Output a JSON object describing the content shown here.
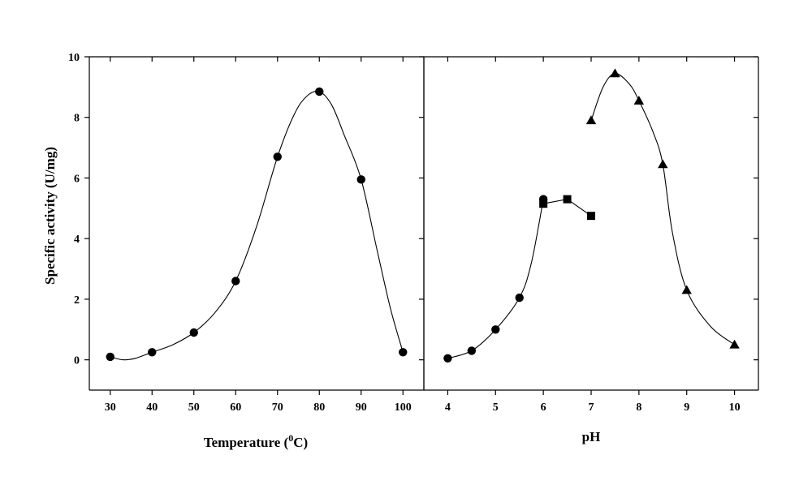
{
  "chart_data": [
    {
      "type": "scatter",
      "xlabel": "Temperature (",
      "xlabel_superscript": "0",
      "xlabel_suffix": "C)",
      "ylabel": "Specific activity (U/mg)",
      "xlim": [
        25,
        105
      ],
      "ylim": [
        -1,
        10
      ],
      "x_ticks": [
        "30",
        "40",
        "50",
        "60",
        "70",
        "80",
        "90",
        "100"
      ],
      "y_ticks": [
        "0",
        "2",
        "4",
        "6",
        "8",
        "10"
      ],
      "grid": false,
      "series": [
        {
          "marker": "circle",
          "x": [
            30,
            40,
            50,
            60,
            70,
            80,
            90,
            100
          ],
          "y": [
            0.1,
            0.25,
            0.9,
            2.6,
            6.7,
            8.85,
            5.95,
            0.25
          ]
        }
      ],
      "fit_curve": {
        "x": [
          30,
          33,
          36,
          40,
          45,
          50,
          55,
          60,
          65,
          70,
          74,
          77,
          80,
          83,
          86,
          90,
          94,
          97,
          100
        ],
        "y": [
          0.1,
          0.0,
          0.05,
          0.25,
          0.5,
          0.9,
          1.55,
          2.6,
          4.4,
          6.7,
          8.1,
          8.7,
          8.85,
          8.4,
          7.4,
          5.95,
          3.5,
          1.7,
          0.25
        ]
      }
    },
    {
      "type": "scatter",
      "xlabel": "pH",
      "xlim": [
        3.5,
        10.5
      ],
      "ylim": [
        -1,
        10
      ],
      "x_ticks": [
        "4",
        "5",
        "6",
        "7",
        "8",
        "9",
        "10"
      ],
      "grid": false,
      "series": [
        {
          "marker": "circle",
          "x": [
            4.0,
            4.5,
            5.0,
            5.5,
            6.0
          ],
          "y": [
            0.05,
            0.3,
            1.0,
            2.05,
            5.3
          ]
        },
        {
          "marker": "square",
          "x": [
            6.0,
            6.5,
            7.0
          ],
          "y": [
            5.15,
            5.3,
            4.75
          ]
        },
        {
          "marker": "triangle",
          "x": [
            7.0,
            7.5,
            8.0,
            8.5,
            9.0,
            10.0
          ],
          "y": [
            7.9,
            9.45,
            8.55,
            6.45,
            2.3,
            0.5
          ]
        }
      ],
      "fit_curves": [
        {
          "x": [
            4.0,
            4.5,
            5.0,
            5.5,
            5.75,
            6.0
          ],
          "y": [
            0.05,
            0.3,
            1.0,
            2.05,
            3.2,
            5.3
          ]
        },
        {
          "x": [
            6.0,
            6.5,
            7.0
          ],
          "y": [
            5.15,
            5.3,
            4.75
          ]
        },
        {
          "x": [
            7.0,
            7.25,
            7.5,
            7.8,
            8.0,
            8.3,
            8.5,
            8.7,
            9.0,
            9.5,
            10.0
          ],
          "y": [
            7.9,
            9.0,
            9.45,
            9.1,
            8.55,
            7.5,
            6.45,
            4.2,
            2.3,
            1.1,
            0.5
          ]
        }
      ]
    }
  ]
}
